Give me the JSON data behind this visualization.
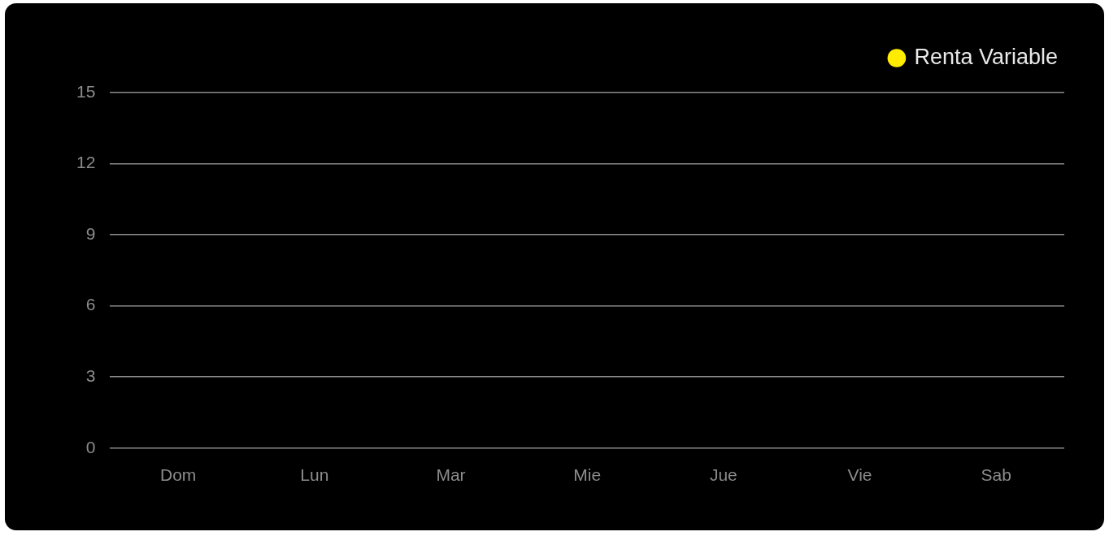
{
  "chart_data": {
    "type": "bar",
    "categories": [
      "Dom",
      "Lun",
      "Mar",
      "Mie",
      "Jue",
      "Vie",
      "Sab"
    ],
    "series": [
      {
        "name": "Renta Variable",
        "color": "#ffec00",
        "values": [
          null,
          null,
          null,
          null,
          null,
          null,
          null
        ]
      }
    ],
    "ylim": [
      0,
      15
    ],
    "yticks": [
      0,
      3,
      6,
      9,
      12,
      15
    ],
    "grid": "y",
    "legend": "top right"
  }
}
